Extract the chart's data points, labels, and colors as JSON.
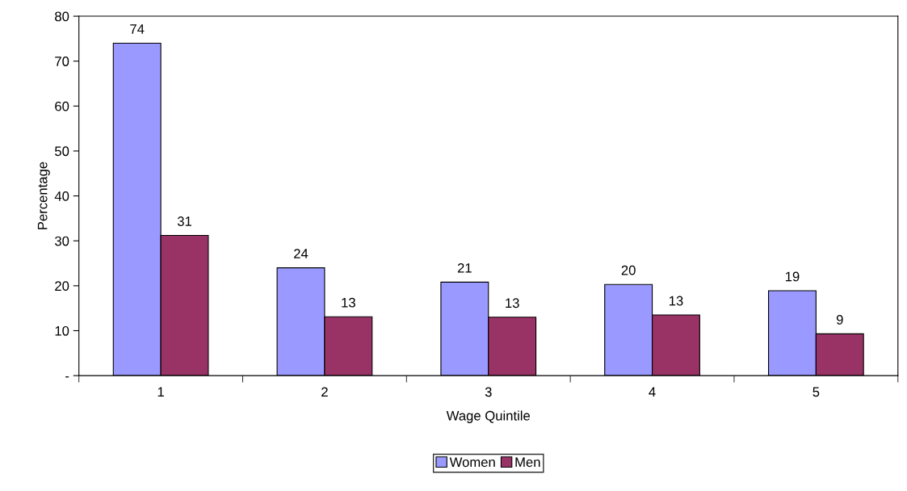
{
  "chart_data": {
    "type": "bar",
    "xlabel": "Wage Quintile",
    "ylabel": "Percentage",
    "categories": [
      "1",
      "2",
      "3",
      "4",
      "5"
    ],
    "series": [
      {
        "name": "Women",
        "color": "#9999ff",
        "values": [
          74,
          24,
          20.8,
          20.3,
          18.9
        ],
        "value_labels": [
          "74",
          "24",
          "21",
          "20",
          "19"
        ]
      },
      {
        "name": "Men",
        "color": "#993366",
        "values": [
          31.2,
          13.1,
          13,
          13.5,
          9.3
        ],
        "value_labels": [
          "31",
          "13",
          "13",
          "13",
          "9"
        ]
      }
    ],
    "ylim": [
      0,
      80
    ],
    "yticks": [
      {
        "value": 0,
        "label": "-"
      },
      10,
      20,
      30,
      40,
      50,
      60,
      70,
      80
    ],
    "grid": false,
    "legend": "bottom"
  }
}
